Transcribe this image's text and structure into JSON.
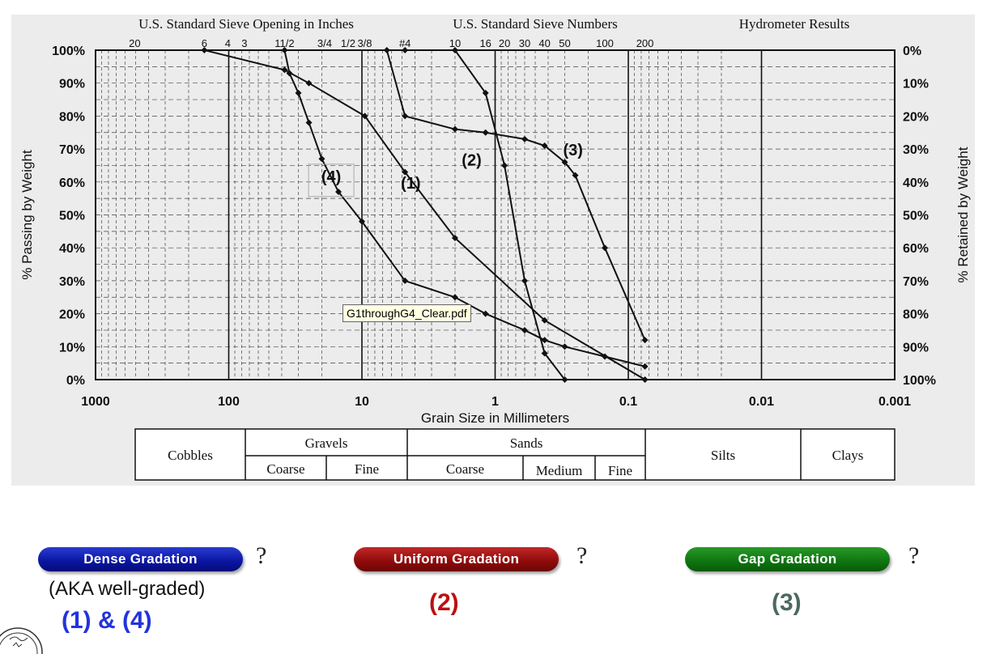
{
  "chart_data": {
    "type": "line",
    "x_scale": "log",
    "x_reversed": true,
    "xlim": [
      1000,
      0.001
    ],
    "ylim": [
      0,
      100
    ],
    "xlabel": "Grain Size in Millimeters",
    "ylabel": "% Passing by Weight",
    "ylabel_right": "% Retained by Weight",
    "x_ticks": [
      1000,
      100,
      10,
      1,
      0.1,
      0.01,
      0.001
    ],
    "x_tick_labels": [
      "1000",
      "100",
      "10",
      "1",
      "0.1",
      "0.01",
      "0.001"
    ],
    "y_ticks": [
      0,
      10,
      20,
      30,
      40,
      50,
      60,
      70,
      80,
      90,
      100
    ],
    "y_tick_labels": [
      "0%",
      "10%",
      "20%",
      "30%",
      "40%",
      "50%",
      "60%",
      "70%",
      "80%",
      "90%",
      "100%"
    ],
    "y_right_tick_labels": [
      "100%",
      "90%",
      "80%",
      "70%",
      "60%",
      "50%",
      "40%",
      "30%",
      "20%",
      "10%",
      "0%"
    ],
    "grid": true,
    "top_headers": [
      "U.S. Standard Sieve Opening in Inches",
      "U.S. Standard Sieve Numbers",
      "Hydrometer Results"
    ],
    "sieve_labels": [
      {
        "label": "20",
        "mm": 508
      },
      {
        "label": "6",
        "mm": 152.4
      },
      {
        "label": "4",
        "mm": 101.6
      },
      {
        "label": "3",
        "mm": 76.2
      },
      {
        "label": "11/2",
        "mm": 38.1
      },
      {
        "label": "3/4",
        "mm": 19.05
      },
      {
        "label": "1/2",
        "mm": 12.7
      },
      {
        "label": "3/8",
        "mm": 9.525
      },
      {
        "label": "#4",
        "mm": 4.75
      },
      {
        "label": "10",
        "mm": 2.0
      },
      {
        "label": "16",
        "mm": 1.18
      },
      {
        "label": "20",
        "mm": 0.85
      },
      {
        "label": "30",
        "mm": 0.6
      },
      {
        "label": "40",
        "mm": 0.425
      },
      {
        "label": "50",
        "mm": 0.3
      },
      {
        "label": "100",
        "mm": 0.15
      },
      {
        "label": "200",
        "mm": 0.075
      }
    ],
    "series": [
      {
        "label": "(1)",
        "label_at": {
          "x": 4.3,
          "y": 58
        },
        "points": [
          [
            152.4,
            100
          ],
          [
            38.1,
            94
          ],
          [
            25,
            90
          ],
          [
            9.5,
            80
          ],
          [
            4.75,
            63
          ],
          [
            2.0,
            43
          ],
          [
            0.425,
            18
          ],
          [
            0.075,
            0
          ]
        ]
      },
      {
        "label": "(2)",
        "label_at": {
          "x": 1.5,
          "y": 65
        },
        "points": [
          [
            4.75,
            100
          ],
          [
            2.0,
            100
          ],
          [
            1.18,
            87
          ],
          [
            0.85,
            65
          ],
          [
            0.6,
            30
          ],
          [
            0.425,
            8
          ],
          [
            0.3,
            0
          ]
        ]
      },
      {
        "label": "(3)",
        "label_at": {
          "x": 0.26,
          "y": 68
        },
        "points": [
          [
            6.5,
            100
          ],
          [
            4.75,
            80
          ],
          [
            2.0,
            76
          ],
          [
            1.18,
            75
          ],
          [
            0.6,
            73
          ],
          [
            0.425,
            71
          ],
          [
            0.3,
            66
          ],
          [
            0.25,
            62
          ],
          [
            0.15,
            40
          ],
          [
            0.075,
            12
          ]
        ]
      },
      {
        "label": "(4)",
        "label_at": {
          "x": 17,
          "y": 60
        },
        "points": [
          [
            38.1,
            100
          ],
          [
            35,
            93
          ],
          [
            30,
            87
          ],
          [
            25,
            78
          ],
          [
            20,
            67
          ],
          [
            15,
            57
          ],
          [
            10,
            48
          ],
          [
            4.75,
            30
          ],
          [
            2.0,
            25
          ],
          [
            1.18,
            20
          ],
          [
            0.6,
            15
          ],
          [
            0.425,
            12
          ],
          [
            0.3,
            10
          ],
          [
            0.15,
            7
          ],
          [
            0.075,
            4
          ]
        ]
      }
    ],
    "soil_classes": {
      "cobbles": "Cobbles",
      "gravels": "Gravels",
      "gravels_coarse": "Coarse",
      "gravels_fine": "Fine",
      "sands": "Sands",
      "sands_coarse": "Coarse",
      "sands_medium": "Medium",
      "sands_fine": "Fine",
      "silts": "Silts",
      "clays": "Clays"
    }
  },
  "tooltip": "G1throughG4_Clear.pdf",
  "buttons": {
    "dense": {
      "label": "Dense Gradation",
      "color": "#0a14a0"
    },
    "uniform": {
      "label": "Uniform Gradation",
      "color": "#8e0a0a"
    },
    "gap": {
      "label": "Gap Gradation",
      "color": "#0e7410"
    },
    "qmark": "?"
  },
  "answers": {
    "aka": "(AKA well-graded)",
    "dense": "(1) & (4)",
    "uniform": "(2)",
    "gap": "(3)",
    "dense_color": "#2233dd",
    "uniform_color": "#bb1111",
    "gap_color": "#4a6a60"
  }
}
